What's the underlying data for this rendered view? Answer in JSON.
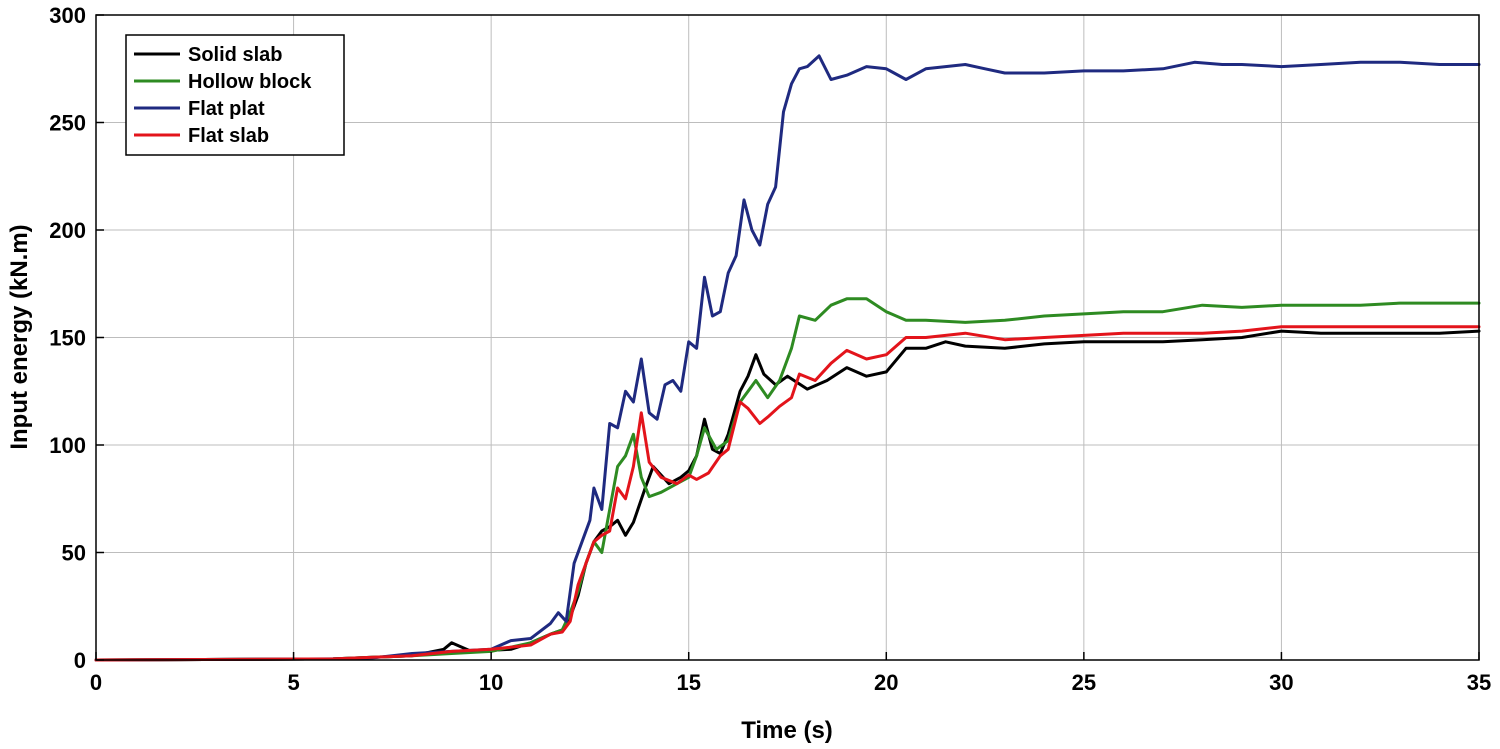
{
  "chart_data": {
    "type": "line",
    "title": "",
    "xlabel": "Time (s)",
    "ylabel": "Input energy (kN.m)",
    "xlim": [
      0,
      35
    ],
    "ylim": [
      0,
      300
    ],
    "xticks": [
      0,
      5,
      10,
      15,
      20,
      25,
      30,
      35
    ],
    "yticks": [
      0,
      50,
      100,
      150,
      200,
      250,
      300
    ],
    "grid": true,
    "legend_position": "top-left",
    "series": [
      {
        "name": "Solid slab",
        "color": "#000000",
        "points": [
          [
            0,
            0
          ],
          [
            6,
            0.5
          ],
          [
            8,
            2
          ],
          [
            8.8,
            5
          ],
          [
            9,
            8
          ],
          [
            9.5,
            4
          ],
          [
            10.5,
            5
          ],
          [
            11,
            8
          ],
          [
            11.5,
            12
          ],
          [
            11.8,
            14
          ],
          [
            12,
            20
          ],
          [
            12.2,
            30
          ],
          [
            12.4,
            45
          ],
          [
            12.6,
            55
          ],
          [
            12.8,
            60
          ],
          [
            13,
            62
          ],
          [
            13.2,
            65
          ],
          [
            13.4,
            58
          ],
          [
            13.6,
            64
          ],
          [
            13.9,
            80
          ],
          [
            14.1,
            90
          ],
          [
            14.5,
            82
          ],
          [
            14.8,
            85
          ],
          [
            15,
            88
          ],
          [
            15.2,
            95
          ],
          [
            15.4,
            112
          ],
          [
            15.6,
            98
          ],
          [
            15.8,
            96
          ],
          [
            16,
            105
          ],
          [
            16.3,
            125
          ],
          [
            16.5,
            132
          ],
          [
            16.7,
            142
          ],
          [
            16.9,
            133
          ],
          [
            17.2,
            128
          ],
          [
            17.5,
            132
          ],
          [
            18,
            126
          ],
          [
            18.5,
            130
          ],
          [
            19,
            136
          ],
          [
            19.5,
            132
          ],
          [
            20,
            134
          ],
          [
            20.5,
            145
          ],
          [
            21,
            145
          ],
          [
            21.5,
            148
          ],
          [
            22,
            146
          ],
          [
            23,
            145
          ],
          [
            24,
            147
          ],
          [
            25,
            148
          ],
          [
            26,
            148
          ],
          [
            27,
            148
          ],
          [
            28,
            149
          ],
          [
            29,
            150
          ],
          [
            30,
            153
          ],
          [
            31,
            152
          ],
          [
            32,
            152
          ],
          [
            33,
            152
          ],
          [
            34,
            152
          ],
          [
            35,
            153
          ]
        ]
      },
      {
        "name": "Hollow block",
        "color": "#2e8b22",
        "points": [
          [
            0,
            0
          ],
          [
            6,
            0.5
          ],
          [
            8,
            2
          ],
          [
            9,
            3
          ],
          [
            10,
            4
          ],
          [
            11,
            8
          ],
          [
            11.5,
            12
          ],
          [
            11.8,
            14
          ],
          [
            12,
            22
          ],
          [
            12.2,
            32
          ],
          [
            12.4,
            45
          ],
          [
            12.6,
            55
          ],
          [
            12.8,
            50
          ],
          [
            13,
            70
          ],
          [
            13.2,
            90
          ],
          [
            13.4,
            95
          ],
          [
            13.6,
            105
          ],
          [
            13.8,
            85
          ],
          [
            14,
            76
          ],
          [
            14.3,
            78
          ],
          [
            14.7,
            82
          ],
          [
            15,
            85
          ],
          [
            15.2,
            95
          ],
          [
            15.4,
            108
          ],
          [
            15.7,
            98
          ],
          [
            16,
            102
          ],
          [
            16.3,
            120
          ],
          [
            16.5,
            125
          ],
          [
            16.7,
            130
          ],
          [
            17,
            122
          ],
          [
            17.3,
            130
          ],
          [
            17.6,
            145
          ],
          [
            17.8,
            160
          ],
          [
            18.2,
            158
          ],
          [
            18.6,
            165
          ],
          [
            19,
            168
          ],
          [
            19.5,
            168
          ],
          [
            20,
            162
          ],
          [
            20.5,
            158
          ],
          [
            21,
            158
          ],
          [
            22,
            157
          ],
          [
            23,
            158
          ],
          [
            24,
            160
          ],
          [
            25,
            161
          ],
          [
            26,
            162
          ],
          [
            27,
            162
          ],
          [
            28,
            165
          ],
          [
            29,
            164
          ],
          [
            30,
            165
          ],
          [
            31,
            165
          ],
          [
            32,
            165
          ],
          [
            33,
            166
          ],
          [
            34,
            166
          ],
          [
            35,
            166
          ]
        ]
      },
      {
        "name": "Flat plat",
        "color": "#1f2a80",
        "points": [
          [
            0,
            0
          ],
          [
            6,
            0.5
          ],
          [
            7,
            1
          ],
          [
            8,
            3
          ],
          [
            9,
            4
          ],
          [
            10,
            5
          ],
          [
            10.5,
            9
          ],
          [
            11,
            10
          ],
          [
            11.5,
            17
          ],
          [
            11.7,
            22
          ],
          [
            11.9,
            18
          ],
          [
            12.1,
            45
          ],
          [
            12.3,
            55
          ],
          [
            12.5,
            65
          ],
          [
            12.6,
            80
          ],
          [
            12.8,
            70
          ],
          [
            13,
            110
          ],
          [
            13.2,
            108
          ],
          [
            13.4,
            125
          ],
          [
            13.6,
            120
          ],
          [
            13.8,
            140
          ],
          [
            14,
            115
          ],
          [
            14.2,
            112
          ],
          [
            14.4,
            128
          ],
          [
            14.6,
            130
          ],
          [
            14.8,
            125
          ],
          [
            15,
            148
          ],
          [
            15.2,
            145
          ],
          [
            15.4,
            178
          ],
          [
            15.6,
            160
          ],
          [
            15.8,
            162
          ],
          [
            16,
            180
          ],
          [
            16.2,
            188
          ],
          [
            16.4,
            214
          ],
          [
            16.6,
            200
          ],
          [
            16.8,
            193
          ],
          [
            17,
            212
          ],
          [
            17.2,
            220
          ],
          [
            17.4,
            255
          ],
          [
            17.6,
            268
          ],
          [
            17.8,
            275
          ],
          [
            18,
            276
          ],
          [
            18.3,
            281
          ],
          [
            18.6,
            270
          ],
          [
            19,
            272
          ],
          [
            19.5,
            276
          ],
          [
            20,
            275
          ],
          [
            20.5,
            270
          ],
          [
            21,
            275
          ],
          [
            21.5,
            276
          ],
          [
            22,
            277
          ],
          [
            22.5,
            275
          ],
          [
            23,
            273
          ],
          [
            24,
            273
          ],
          [
            25,
            274
          ],
          [
            26,
            274
          ],
          [
            27,
            275
          ],
          [
            27.8,
            278
          ],
          [
            28.5,
            277
          ],
          [
            29,
            277
          ],
          [
            30,
            276
          ],
          [
            31,
            277
          ],
          [
            32,
            278
          ],
          [
            33,
            278
          ],
          [
            34,
            277
          ],
          [
            35,
            277
          ]
        ]
      },
      {
        "name": "Flat slab",
        "color": "#e3141b",
        "points": [
          [
            0,
            0
          ],
          [
            6,
            0.5
          ],
          [
            8,
            2
          ],
          [
            9,
            4
          ],
          [
            10,
            5
          ],
          [
            11,
            7
          ],
          [
            11.5,
            12
          ],
          [
            11.8,
            13
          ],
          [
            12,
            18
          ],
          [
            12.2,
            35
          ],
          [
            12.4,
            45
          ],
          [
            12.6,
            55
          ],
          [
            12.8,
            58
          ],
          [
            13,
            60
          ],
          [
            13.2,
            80
          ],
          [
            13.4,
            75
          ],
          [
            13.6,
            90
          ],
          [
            13.8,
            115
          ],
          [
            14,
            92
          ],
          [
            14.3,
            85
          ],
          [
            14.7,
            82
          ],
          [
            15,
            86
          ],
          [
            15.2,
            84
          ],
          [
            15.5,
            87
          ],
          [
            15.8,
            95
          ],
          [
            16,
            98
          ],
          [
            16.3,
            120
          ],
          [
            16.5,
            117
          ],
          [
            16.8,
            110
          ],
          [
            17,
            113
          ],
          [
            17.3,
            118
          ],
          [
            17.6,
            122
          ],
          [
            17.8,
            133
          ],
          [
            18.2,
            130
          ],
          [
            18.6,
            138
          ],
          [
            19,
            144
          ],
          [
            19.5,
            140
          ],
          [
            20,
            142
          ],
          [
            20.5,
            150
          ],
          [
            21,
            150
          ],
          [
            21.5,
            151
          ],
          [
            22,
            152
          ],
          [
            23,
            149
          ],
          [
            24,
            150
          ],
          [
            25,
            151
          ],
          [
            26,
            152
          ],
          [
            27,
            152
          ],
          [
            28,
            152
          ],
          [
            29,
            153
          ],
          [
            30,
            155
          ],
          [
            31,
            155
          ],
          [
            32,
            155
          ],
          [
            33,
            155
          ],
          [
            34,
            155
          ],
          [
            35,
            155
          ]
        ]
      }
    ]
  }
}
